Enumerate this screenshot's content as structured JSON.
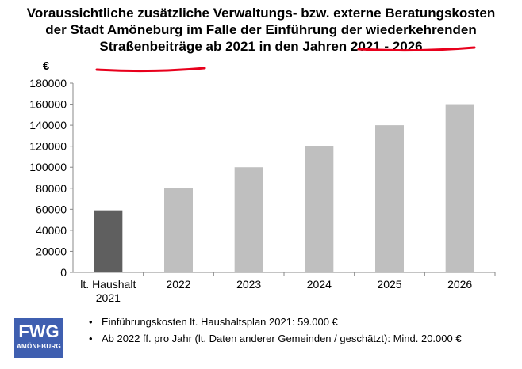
{
  "title_lines": [
    "Voraussichtliche zusätzliche Verwaltungs- bzw. externe Beratungskosten",
    "der Stadt Amöneburg im Falle der Einführung der wiederkehrenden",
    "Straßenbeiträge ab 2021 in den Jahren 2021 - 2026"
  ],
  "colors": {
    "bar_first": "#5f5f5f",
    "bar_rest": "#bfbfbf",
    "highlight_underline": "#e8001c",
    "logo_bg": "#3f5fb0"
  },
  "chart_data": {
    "type": "bar",
    "title": "Voraussichtliche zusätzliche Verwaltungs- bzw. externe Beratungskosten der Stadt Amöneburg im Falle der Einführung der wiederkehrenden Straßenbeiträge ab 2021 in den Jahren 2021 - 2026",
    "ylabel": "€",
    "categories": [
      [
        "lt. Haushalt",
        "2021"
      ],
      [
        "2022"
      ],
      [
        "2023"
      ],
      [
        "2024"
      ],
      [
        "2025"
      ],
      [
        "2026"
      ]
    ],
    "values": [
      59000,
      80000,
      100000,
      120000,
      140000,
      160000
    ],
    "ylim": [
      0,
      180000
    ],
    "yticks": [
      "0",
      "20000",
      "40000",
      "60000",
      "80000",
      "100000",
      "120000",
      "140000",
      "160000",
      "180000"
    ],
    "grid": false,
    "legend": "none"
  },
  "notes": [
    "Einführungskosten lt. Haushaltsplan 2021:   59.000 €",
    "Ab 2022 ff. pro Jahr (lt. Daten anderer Gemeinden / geschätzt): Mind. 20.000 €"
  ],
  "logo": {
    "main": "FWG",
    "sub": "AMÖNEBURG"
  }
}
